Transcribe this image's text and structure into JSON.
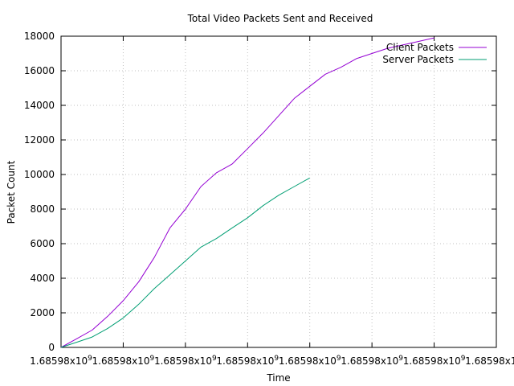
{
  "chart_data": {
    "type": "line",
    "title": "Total Video Packets Sent and Received",
    "xlabel": "Time",
    "ylabel": "Packet Count",
    "ylim": [
      0,
      18000
    ],
    "yticks": [
      0,
      2000,
      4000,
      6000,
      8000,
      10000,
      12000,
      14000,
      16000,
      18000
    ],
    "xlim": [
      0,
      7
    ],
    "xticks": [
      0,
      1,
      2,
      3,
      4,
      5,
      6,
      7
    ],
    "xtick_label": "1.68598x10",
    "xtick_exponent": "9",
    "x_unit_note": "tick index",
    "grid": true,
    "legend_position": "top-right",
    "series": [
      {
        "name": "Client Packets",
        "color": "#9400d3",
        "x": [
          0,
          0.25,
          0.5,
          0.75,
          1.0,
          1.25,
          1.5,
          1.75,
          2.0,
          2.25,
          2.5,
          2.75,
          3.0,
          3.25,
          3.5,
          3.75,
          4.0,
          4.25,
          4.5,
          4.75,
          5.0,
          5.25,
          5.5,
          5.75,
          6.0
        ],
        "values": [
          0,
          500,
          1000,
          1800,
          2700,
          3800,
          5200,
          6900,
          8000,
          9300,
          10100,
          10600,
          11500,
          12400,
          13400,
          14400,
          15100,
          15800,
          16200,
          16700,
          17000,
          17300,
          17500,
          17700,
          17900
        ]
      },
      {
        "name": "Server Packets",
        "color": "#009e73",
        "x": [
          0,
          0.25,
          0.5,
          0.75,
          1.0,
          1.25,
          1.5,
          1.75,
          2.0,
          2.25,
          2.5,
          2.75,
          3.0,
          3.25,
          3.5,
          3.75,
          4.0
        ],
        "values": [
          0,
          300,
          600,
          1100,
          1700,
          2500,
          3400,
          4200,
          5000,
          5800,
          6300,
          6900,
          7500,
          8200,
          8800,
          9300,
          9800
        ]
      }
    ]
  }
}
